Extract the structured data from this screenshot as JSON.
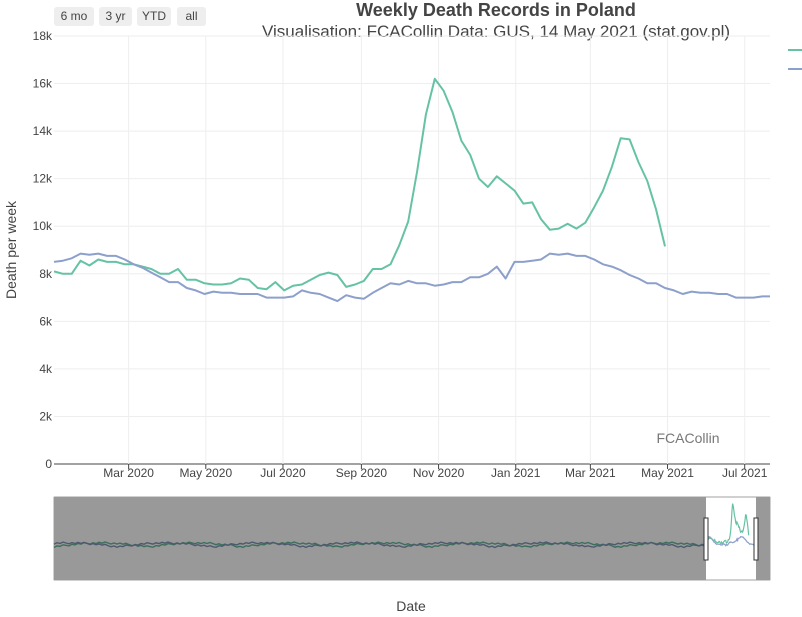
{
  "range_buttons": [
    "6 mo",
    "3 yr",
    "YTD",
    "all"
  ],
  "colors": {
    "series_2020": "#66c2a5",
    "series_avg": "#8da0cb",
    "grid": "#eeeeee",
    "slider_mask": "#999999"
  },
  "chart_data": {
    "type": "line",
    "title": "Weekly Death Records in Poland",
    "subtitle": "Visualisation: FCACollin Data: GUS, 14 May 2021 (stat.gov.pl)",
    "xlabel": "Date",
    "ylabel": "Death per week",
    "ylim": [
      0,
      18000
    ],
    "xlim": [
      "2020-01-02",
      "2021-07-21"
    ],
    "y_ticks": [
      0,
      2000,
      4000,
      6000,
      8000,
      10000,
      12000,
      14000,
      16000,
      18000
    ],
    "y_tick_labels": [
      "0",
      "2k",
      "4k",
      "6k",
      "8k",
      "10k",
      "12k",
      "14k",
      "16k",
      "18k"
    ],
    "x_ticks": [
      "2020-03-01",
      "2020-05-01",
      "2020-07-01",
      "2020-09-01",
      "2020-11-01",
      "2021-01-01",
      "2021-03-01",
      "2021-05-01",
      "2021-07-01"
    ],
    "x_tick_labels": [
      "Mar 2020",
      "May 2020",
      "Jul 2020",
      "Sep 2020",
      "Nov 2020",
      "Jan 2021",
      "Mar 2021",
      "May 2021",
      "Jul 2021"
    ],
    "annotation": "FCACollin",
    "grid": true,
    "legend": "top-right",
    "series": [
      {
        "color": "#66c2a5",
        "x": [
          "2020-01-02",
          "2020-01-09",
          "2020-01-16",
          "2020-01-23",
          "2020-01-30",
          "2020-02-06",
          "2020-02-13",
          "2020-02-20",
          "2020-02-27",
          "2020-03-05",
          "2020-03-12",
          "2020-03-19",
          "2020-03-26",
          "2020-04-02",
          "2020-04-09",
          "2020-04-16",
          "2020-04-23",
          "2020-04-30",
          "2020-05-07",
          "2020-05-14",
          "2020-05-21",
          "2020-05-28",
          "2020-06-04",
          "2020-06-11",
          "2020-06-18",
          "2020-06-25",
          "2020-07-02",
          "2020-07-09",
          "2020-07-16",
          "2020-07-23",
          "2020-07-30",
          "2020-08-06",
          "2020-08-13",
          "2020-08-20",
          "2020-08-27",
          "2020-09-03",
          "2020-09-10",
          "2020-09-17",
          "2020-09-24",
          "2020-10-01",
          "2020-10-08",
          "2020-10-15",
          "2020-10-22",
          "2020-10-29",
          "2020-11-05",
          "2020-11-12",
          "2020-11-19",
          "2020-11-26",
          "2020-12-03",
          "2020-12-10",
          "2020-12-17",
          "2020-12-24",
          "2020-12-31",
          "2021-01-07",
          "2021-01-14",
          "2021-01-21",
          "2021-01-28",
          "2021-02-04",
          "2021-02-11",
          "2021-02-18",
          "2021-02-25",
          "2021-03-04",
          "2021-03-11",
          "2021-03-18",
          "2021-03-25",
          "2021-04-01",
          "2021-04-08",
          "2021-04-15",
          "2021-04-22",
          "2021-04-29"
        ],
        "values": [
          8100,
          8000,
          8000,
          8550,
          8350,
          8600,
          8500,
          8500,
          8400,
          8400,
          8300,
          8200,
          8000,
          8000,
          8200,
          7750,
          7750,
          7600,
          7550,
          7550,
          7600,
          7800,
          7750,
          7400,
          7350,
          7650,
          7300,
          7500,
          7550,
          7750,
          7950,
          8050,
          7950,
          7450,
          7550,
          7700,
          8200,
          8200,
          8400,
          9200,
          10200,
          12300,
          14700,
          16200,
          15700,
          14800,
          13600,
          13000,
          12000,
          11650,
          12100,
          11800,
          11500,
          10950,
          11000,
          10300,
          9850,
          9900,
          10100,
          9900,
          10150,
          10800,
          11500,
          12500,
          13700,
          13650,
          12700,
          11900,
          10700,
          9150
        ]
      },
      {
        "color": "#8da0cb",
        "x": [
          "2020-01-02",
          "2020-01-09",
          "2020-01-16",
          "2020-01-23",
          "2020-01-30",
          "2020-02-06",
          "2020-02-13",
          "2020-02-20",
          "2020-02-27",
          "2020-03-05",
          "2020-03-12",
          "2020-03-19",
          "2020-03-26",
          "2020-04-02",
          "2020-04-09",
          "2020-04-16",
          "2020-04-23",
          "2020-04-30",
          "2020-05-07",
          "2020-05-14",
          "2020-05-21",
          "2020-05-28",
          "2020-06-04",
          "2020-06-11",
          "2020-06-18",
          "2020-06-25",
          "2020-07-02",
          "2020-07-09",
          "2020-07-16",
          "2020-07-23",
          "2020-07-30",
          "2020-08-06",
          "2020-08-13",
          "2020-08-20",
          "2020-08-27",
          "2020-09-03",
          "2020-09-10",
          "2020-09-17",
          "2020-09-24",
          "2020-10-01",
          "2020-10-08",
          "2020-10-15",
          "2020-10-22",
          "2020-10-29",
          "2020-11-05",
          "2020-11-12",
          "2020-11-19",
          "2020-11-26",
          "2020-12-03",
          "2020-12-10",
          "2020-12-17",
          "2020-12-24",
          "2020-12-31",
          "2021-01-07",
          "2021-01-14",
          "2021-01-21",
          "2021-01-28",
          "2021-02-04",
          "2021-02-11",
          "2021-02-18",
          "2021-02-25",
          "2021-03-04",
          "2021-03-11",
          "2021-03-18",
          "2021-03-25",
          "2021-04-01",
          "2021-04-08",
          "2021-04-15",
          "2021-04-22",
          "2021-04-29",
          "2021-05-06",
          "2021-05-13",
          "2021-05-20",
          "2021-05-27",
          "2021-06-03",
          "2021-06-10",
          "2021-06-17",
          "2021-06-24",
          "2021-07-01",
          "2021-07-08",
          "2021-07-15",
          "2021-07-21"
        ],
        "values": [
          8500,
          8550,
          8650,
          8850,
          8800,
          8850,
          8750,
          8750,
          8600,
          8400,
          8250,
          8050,
          7850,
          7650,
          7650,
          7400,
          7300,
          7150,
          7250,
          7200,
          7200,
          7150,
          7150,
          7150,
          7000,
          7000,
          7000,
          7050,
          7300,
          7200,
          7150,
          7000,
          6850,
          7100,
          7000,
          6950,
          7200,
          7400,
          7600,
          7550,
          7700,
          7600,
          7600,
          7500,
          7550,
          7650,
          7650,
          7850,
          7850,
          8000,
          8300,
          7800,
          8500,
          8500,
          8550,
          8600,
          8850,
          8800,
          8850,
          8750,
          8750,
          8600,
          8400,
          8300,
          8150,
          7950,
          7800,
          7600,
          7600,
          7400,
          7300,
          7150,
          7250,
          7200,
          7200,
          7150,
          7150,
          7000,
          7000,
          7000,
          7050,
          7050
        ]
      }
    ]
  }
}
